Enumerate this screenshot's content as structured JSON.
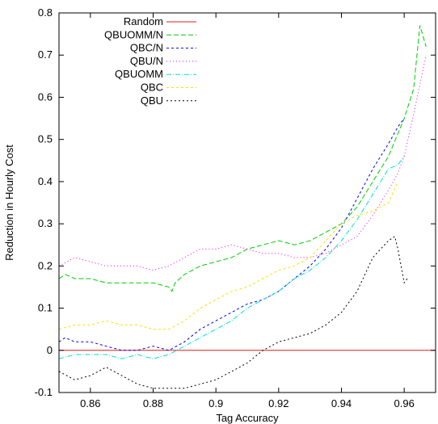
{
  "chart_data": {
    "type": "line",
    "xlabel": "Tag Accuracy",
    "ylabel": "Reduction in Hourly Cost",
    "xlim": [
      0.85,
      0.97
    ],
    "ylim": [
      -0.1,
      0.8
    ],
    "xticks": [
      0.86,
      0.88,
      0.9,
      0.92,
      0.94,
      0.96
    ],
    "xtick_labels": [
      "0.86",
      "0.88",
      "0.9",
      "0.92",
      "0.94",
      "0.96"
    ],
    "yticks": [
      -0.1,
      0,
      0.1,
      0.2,
      0.3,
      0.4,
      0.5,
      0.6,
      0.7,
      0.8
    ],
    "ytick_labels": [
      "-0.1",
      "0",
      "0.1",
      "0.2",
      "0.3",
      "0.4",
      "0.5",
      "0.6",
      "0.7",
      "0.8"
    ],
    "grid": false,
    "legend_position": "top-left",
    "series": [
      {
        "name": "Random",
        "color": "#e41a1c",
        "dash": "solid",
        "x": [
          0.85,
          0.97
        ],
        "y": [
          0,
          0
        ]
      },
      {
        "name": "QBUOMM/N",
        "color": "#00cc00",
        "dash": "6,3",
        "x": [
          0.85,
          0.852,
          0.855,
          0.86,
          0.865,
          0.87,
          0.875,
          0.88,
          0.885,
          0.886,
          0.887,
          0.89,
          0.895,
          0.9,
          0.905,
          0.91,
          0.915,
          0.92,
          0.925,
          0.93,
          0.935,
          0.94,
          0.945,
          0.95,
          0.955,
          0.96,
          0.963,
          0.965,
          0.967
        ],
        "y": [
          0.17,
          0.18,
          0.17,
          0.17,
          0.16,
          0.16,
          0.16,
          0.16,
          0.15,
          0.14,
          0.16,
          0.18,
          0.2,
          0.21,
          0.22,
          0.24,
          0.25,
          0.26,
          0.25,
          0.26,
          0.28,
          0.3,
          0.34,
          0.4,
          0.46,
          0.55,
          0.62,
          0.77,
          0.72
        ]
      },
      {
        "name": "QBC/N",
        "color": "#0000ee",
        "dash": "3,3",
        "x": [
          0.85,
          0.852,
          0.855,
          0.86,
          0.865,
          0.87,
          0.875,
          0.88,
          0.885,
          0.89,
          0.895,
          0.9,
          0.905,
          0.91,
          0.915,
          0.92,
          0.925,
          0.93,
          0.935,
          0.94,
          0.945,
          0.95,
          0.955,
          0.958,
          0.96
        ],
        "y": [
          0.02,
          0.03,
          0.02,
          0.02,
          0.01,
          0.0,
          0.0,
          0.01,
          0.0,
          0.02,
          0.05,
          0.07,
          0.09,
          0.11,
          0.12,
          0.14,
          0.17,
          0.2,
          0.24,
          0.29,
          0.36,
          0.43,
          0.49,
          0.53,
          0.55
        ]
      },
      {
        "name": "QBU/N",
        "color": "#ee00ee",
        "dash": "1,3",
        "x": [
          0.85,
          0.855,
          0.86,
          0.865,
          0.87,
          0.875,
          0.88,
          0.885,
          0.89,
          0.895,
          0.9,
          0.905,
          0.91,
          0.915,
          0.92,
          0.925,
          0.93,
          0.935,
          0.94,
          0.945,
          0.95,
          0.955,
          0.958,
          0.96,
          0.963,
          0.967
        ],
        "y": [
          0.2,
          0.22,
          0.21,
          0.2,
          0.2,
          0.2,
          0.19,
          0.2,
          0.22,
          0.24,
          0.24,
          0.25,
          0.24,
          0.23,
          0.23,
          0.22,
          0.22,
          0.23,
          0.25,
          0.27,
          0.32,
          0.38,
          0.42,
          0.46,
          0.56,
          0.7
        ]
      },
      {
        "name": "QBUOMM",
        "color": "#00dddd",
        "dash": "6,2,1,2",
        "x": [
          0.85,
          0.855,
          0.86,
          0.865,
          0.87,
          0.875,
          0.88,
          0.885,
          0.89,
          0.895,
          0.9,
          0.905,
          0.91,
          0.915,
          0.92,
          0.925,
          0.93,
          0.935,
          0.94,
          0.945,
          0.95,
          0.955,
          0.958,
          0.96
        ],
        "y": [
          -0.02,
          -0.01,
          -0.01,
          -0.01,
          -0.02,
          -0.01,
          -0.02,
          -0.01,
          0.01,
          0.03,
          0.05,
          0.07,
          0.1,
          0.12,
          0.14,
          0.17,
          0.19,
          0.22,
          0.26,
          0.31,
          0.37,
          0.43,
          0.44,
          0.46
        ]
      },
      {
        "name": "QBC",
        "color": "#ffdd00",
        "dash": "3,3",
        "x": [
          0.85,
          0.855,
          0.86,
          0.865,
          0.87,
          0.875,
          0.88,
          0.885,
          0.89,
          0.895,
          0.9,
          0.905,
          0.91,
          0.915,
          0.92,
          0.925,
          0.93,
          0.935,
          0.94,
          0.945,
          0.95,
          0.955,
          0.958
        ],
        "y": [
          0.05,
          0.06,
          0.06,
          0.07,
          0.06,
          0.06,
          0.05,
          0.05,
          0.07,
          0.1,
          0.12,
          0.14,
          0.15,
          0.17,
          0.19,
          0.2,
          0.22,
          0.26,
          0.3,
          0.32,
          0.33,
          0.35,
          0.4
        ]
      },
      {
        "name": "QBU",
        "color": "#000000",
        "dash": "2,3",
        "x": [
          0.85,
          0.855,
          0.86,
          0.865,
          0.87,
          0.875,
          0.88,
          0.885,
          0.89,
          0.895,
          0.9,
          0.905,
          0.91,
          0.915,
          0.92,
          0.925,
          0.93,
          0.935,
          0.94,
          0.945,
          0.95,
          0.955,
          0.957,
          0.958,
          0.96,
          0.961
        ],
        "y": [
          -0.05,
          -0.07,
          -0.06,
          -0.04,
          -0.06,
          -0.08,
          -0.09,
          -0.09,
          -0.09,
          -0.08,
          -0.07,
          -0.05,
          -0.03,
          0.0,
          0.02,
          0.03,
          0.04,
          0.06,
          0.09,
          0.14,
          0.22,
          0.26,
          0.27,
          0.24,
          0.16,
          0.17
        ]
      }
    ]
  }
}
